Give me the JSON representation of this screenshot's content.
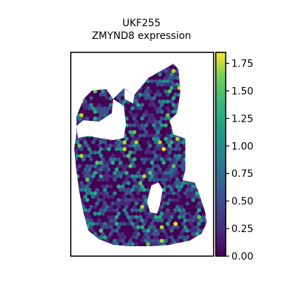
{
  "chart_data": {
    "type": "scatter",
    "title": "UKF255",
    "subtitle": "ZMYND8 expression",
    "xlabel": "",
    "ylabel": "",
    "grid": false,
    "marker": "hexagon",
    "colormap": "viridis",
    "colorbar": {
      "label": "",
      "min": 0.0,
      "max": 1.85,
      "ticks": [
        "0.00",
        "0.25",
        "0.50",
        "0.75",
        "1.00",
        "1.25",
        "1.50",
        "1.75"
      ],
      "tick_values": [
        0.0,
        0.25,
        0.5,
        0.75,
        1.0,
        1.25,
        1.5,
        1.75
      ]
    },
    "colors": {
      "low": "#440154",
      "mid": "#21918c",
      "high": "#fde725"
    }
  }
}
